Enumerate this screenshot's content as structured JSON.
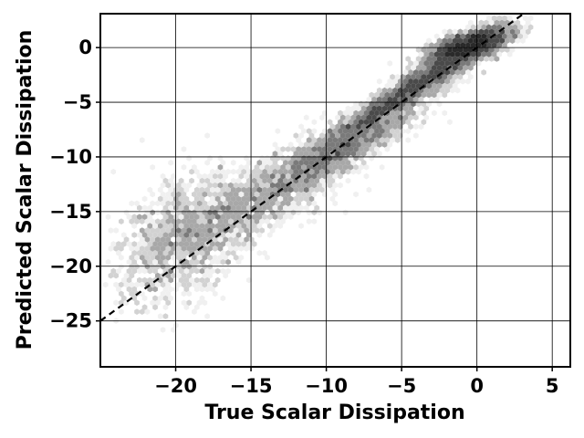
{
  "chart_data": {
    "type": "heatmap",
    "subtype": "hexbin-density-scatter",
    "xlabel": "True Scalar Dissipation",
    "ylabel": "Predicted Scalar Dissipation",
    "xlim": [
      -25,
      6.2
    ],
    "ylim": [
      -29.2,
      3.1
    ],
    "xticks": [
      -20,
      -15,
      -10,
      -5,
      0,
      5
    ],
    "yticks": [
      -25,
      -20,
      -15,
      -10,
      -5,
      0
    ],
    "xtick_labels": [
      "−20",
      "−15",
      "−10",
      "−5",
      "0",
      "5"
    ],
    "ytick_labels": [
      "−25",
      "−20",
      "−15",
      "−10",
      "−5",
      "0"
    ],
    "grid": true,
    "reference_line": {
      "style": "dashed",
      "color": "#000000",
      "slope": 1,
      "intercept": 0
    },
    "colormap": [
      "#f0f0f0",
      "#d2d2d2",
      "#a8a8a8",
      "#7a7a7a",
      "#4a4a4a",
      "#2a2a2a"
    ],
    "density_clusters": [
      {
        "cx": -0.5,
        "cy": 0.2,
        "sx": 1.3,
        "sy": 0.8,
        "rho": 0.6,
        "n": 2600
      },
      {
        "cx": -4.0,
        "cy": -3.5,
        "sx": 2.7,
        "sy": 2.4,
        "rho": 0.95,
        "n": 2400
      },
      {
        "cx": -9.0,
        "cy": -9.2,
        "sx": 2.6,
        "sy": 2.3,
        "rho": 0.88,
        "n": 1700
      },
      {
        "cx": -14.0,
        "cy": -13.5,
        "sx": 2.8,
        "sy": 2.6,
        "rho": 0.75,
        "n": 1100
      },
      {
        "cx": -19.5,
        "cy": -17.5,
        "sx": 2.2,
        "sy": 2.9,
        "rho": 0.4,
        "n": 1300
      }
    ]
  }
}
